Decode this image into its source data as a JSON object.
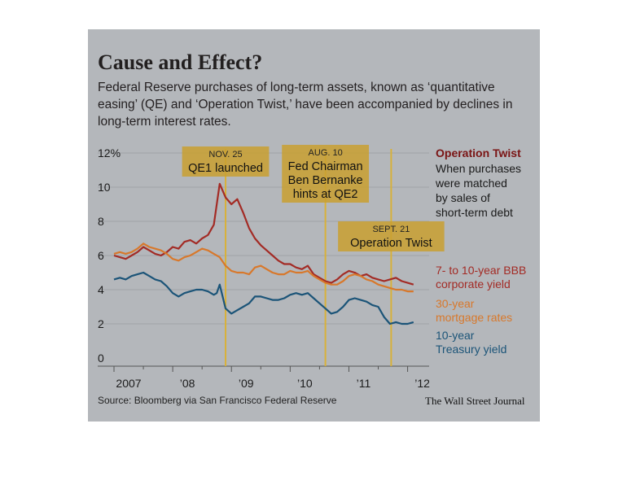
{
  "header": {
    "title": "Cause and Effect?",
    "subtitle": "Federal Reserve purchases of long-term assets, known as ‘quantitative easing’ (QE) and ‘Operation Twist,’ have been accompanied by declines in long-term interest rates."
  },
  "footer": {
    "source": "Source: Bloomberg via San Francisco Federal Reserve",
    "credit": "The Wall Street Journal"
  },
  "sidebar_note": {
    "title": "Operation Twist",
    "lines": [
      "When purchases",
      "were matched",
      "by sales of",
      "short-term debt"
    ]
  },
  "colors": {
    "bbb": "#a32b25",
    "mortgage": "#d8782b",
    "treasury": "#1b5478",
    "annotation_box": "#c9a030",
    "annotation_line": "#d8b13a",
    "panel": "#b4b7bb"
  },
  "chart_data": {
    "type": "line",
    "title": "",
    "xlabel": "",
    "ylabel": "",
    "y_unit": "%",
    "ylim": [
      0,
      12
    ],
    "yticks": [
      0,
      2,
      4,
      6,
      8,
      10,
      12
    ],
    "ytick_labels": [
      "0",
      "2",
      "4",
      "6",
      "8",
      "10",
      "12%"
    ],
    "xlim": [
      2007.0,
      2012.2
    ],
    "xticks": [
      2007.0,
      2008.0,
      2009.0,
      2010.0,
      2011.0,
      2012.0
    ],
    "xtick_labels": [
      "2007",
      "’08",
      "’09",
      "’10",
      "’11",
      "’12"
    ],
    "grid": true,
    "legend_position": "right",
    "series": [
      {
        "name": "7- to 10-year BBB corporate yield",
        "name_lines": [
          "7- to 10-year BBB",
          "corporate yield"
        ],
        "color_key": "bbb",
        "x": [
          2007.0,
          2007.1,
          2007.2,
          2007.3,
          2007.4,
          2007.5,
          2007.6,
          2007.7,
          2007.8,
          2007.9,
          2008.0,
          2008.1,
          2008.2,
          2008.3,
          2008.4,
          2008.5,
          2008.6,
          2008.7,
          2008.75,
          2008.8,
          2008.85,
          2008.9,
          2009.0,
          2009.1,
          2009.2,
          2009.3,
          2009.4,
          2009.5,
          2009.6,
          2009.7,
          2009.8,
          2009.9,
          2010.0,
          2010.1,
          2010.2,
          2010.3,
          2010.4,
          2010.5,
          2010.6,
          2010.7,
          2010.8,
          2010.9,
          2011.0,
          2011.1,
          2011.2,
          2011.3,
          2011.4,
          2011.5,
          2011.6,
          2011.7,
          2011.8,
          2011.9,
          2012.0,
          2012.1
        ],
        "y": [
          6.0,
          5.9,
          5.8,
          6.0,
          6.2,
          6.5,
          6.3,
          6.1,
          6.0,
          6.2,
          6.5,
          6.4,
          6.8,
          6.9,
          6.7,
          7.0,
          7.2,
          7.8,
          9.0,
          10.2,
          9.8,
          9.4,
          9.0,
          9.3,
          8.5,
          7.6,
          7.0,
          6.6,
          6.3,
          6.0,
          5.7,
          5.5,
          5.5,
          5.3,
          5.2,
          5.4,
          4.9,
          4.7,
          4.5,
          4.4,
          4.6,
          4.9,
          5.1,
          5.0,
          4.8,
          4.9,
          4.7,
          4.6,
          4.5,
          4.6,
          4.7,
          4.5,
          4.4,
          4.3
        ]
      },
      {
        "name": "30-year mortgage rates",
        "name_lines": [
          "30-year",
          "mortgage rates"
        ],
        "color_key": "mortgage",
        "x": [
          2007.0,
          2007.1,
          2007.2,
          2007.3,
          2007.4,
          2007.5,
          2007.6,
          2007.7,
          2007.8,
          2007.9,
          2008.0,
          2008.1,
          2008.2,
          2008.3,
          2008.4,
          2008.5,
          2008.6,
          2008.7,
          2008.8,
          2008.9,
          2009.0,
          2009.1,
          2009.2,
          2009.3,
          2009.4,
          2009.5,
          2009.6,
          2009.7,
          2009.8,
          2009.9,
          2010.0,
          2010.1,
          2010.2,
          2010.3,
          2010.4,
          2010.5,
          2010.6,
          2010.7,
          2010.8,
          2010.9,
          2011.0,
          2011.1,
          2011.2,
          2011.3,
          2011.4,
          2011.5,
          2011.6,
          2011.7,
          2011.8,
          2011.9,
          2012.0,
          2012.1
        ],
        "y": [
          6.1,
          6.2,
          6.1,
          6.2,
          6.4,
          6.7,
          6.5,
          6.4,
          6.3,
          6.1,
          5.8,
          5.7,
          5.9,
          6.0,
          6.2,
          6.4,
          6.3,
          6.1,
          5.9,
          5.4,
          5.1,
          5.0,
          5.0,
          4.9,
          5.3,
          5.4,
          5.2,
          5.0,
          4.9,
          4.9,
          5.1,
          5.0,
          5.0,
          5.1,
          4.8,
          4.6,
          4.4,
          4.3,
          4.3,
          4.5,
          4.8,
          4.9,
          4.8,
          4.6,
          4.5,
          4.3,
          4.2,
          4.1,
          4.0,
          4.0,
          3.9,
          3.9
        ]
      },
      {
        "name": "10-year Treasury yield",
        "name_lines": [
          "10-year",
          "Treasury yield"
        ],
        "color_key": "treasury",
        "x": [
          2007.0,
          2007.1,
          2007.2,
          2007.3,
          2007.4,
          2007.5,
          2007.6,
          2007.7,
          2007.8,
          2007.9,
          2008.0,
          2008.1,
          2008.2,
          2008.3,
          2008.4,
          2008.5,
          2008.6,
          2008.7,
          2008.75,
          2008.8,
          2008.85,
          2008.9,
          2009.0,
          2009.1,
          2009.2,
          2009.3,
          2009.4,
          2009.5,
          2009.6,
          2009.7,
          2009.8,
          2009.9,
          2010.0,
          2010.1,
          2010.2,
          2010.3,
          2010.4,
          2010.5,
          2010.6,
          2010.7,
          2010.8,
          2010.9,
          2011.0,
          2011.1,
          2011.2,
          2011.3,
          2011.4,
          2011.5,
          2011.6,
          2011.7,
          2011.8,
          2011.9,
          2012.0,
          2012.1
        ],
        "y": [
          4.6,
          4.7,
          4.6,
          4.8,
          4.9,
          5.0,
          4.8,
          4.6,
          4.5,
          4.2,
          3.8,
          3.6,
          3.8,
          3.9,
          4.0,
          4.0,
          3.9,
          3.7,
          3.8,
          4.3,
          3.6,
          2.9,
          2.6,
          2.8,
          3.0,
          3.2,
          3.6,
          3.6,
          3.5,
          3.4,
          3.4,
          3.5,
          3.7,
          3.8,
          3.7,
          3.8,
          3.5,
          3.2,
          2.9,
          2.6,
          2.7,
          3.0,
          3.4,
          3.5,
          3.4,
          3.3,
          3.1,
          3.0,
          2.4,
          2.0,
          2.1,
          2.0,
          2.0,
          2.1
        ]
      }
    ],
    "annotations": [
      {
        "x": 2008.9,
        "date": "NOV. 25",
        "lines": [
          "QE1 launched"
        ]
      },
      {
        "x": 2010.6,
        "date": "AUG. 10",
        "lines": [
          "Fed Chairman",
          "Ben Bernanke",
          "hints at QE2"
        ]
      },
      {
        "x": 2011.72,
        "date": "SEPT. 21",
        "lines": [
          "Operation Twist"
        ]
      }
    ]
  }
}
